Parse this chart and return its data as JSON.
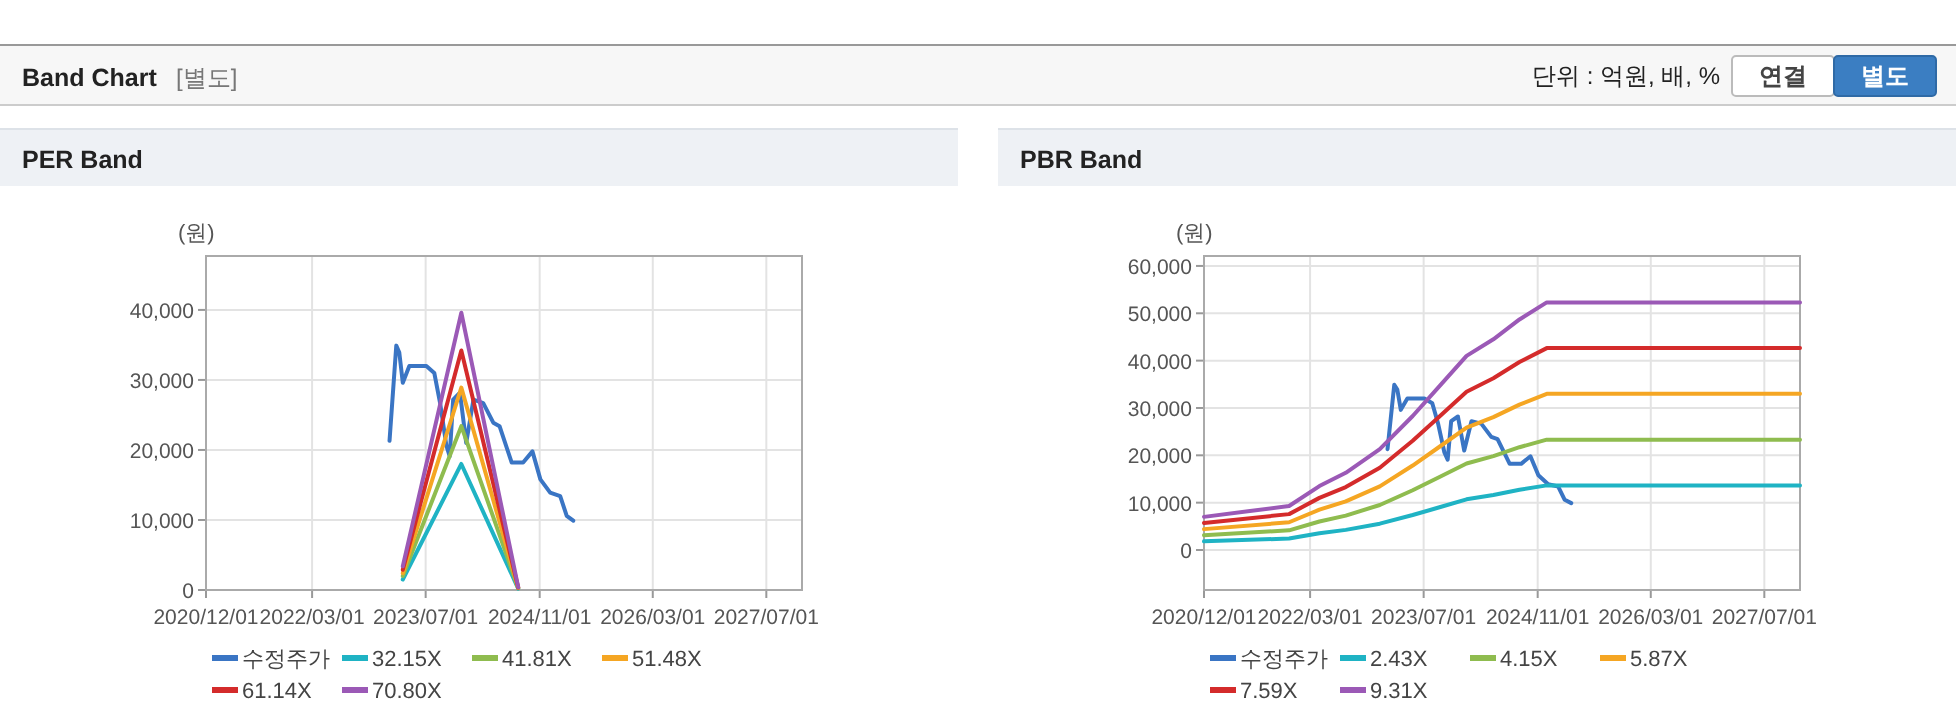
{
  "chart_data": [
    {
      "type": "other",
      "title": "Band Chart",
      "subtitle": "[별도]",
      "annotations": [
        "단위 : 억원, 배, %",
        "연결",
        "별도"
      ]
    },
    {
      "type": "line",
      "title": "PER Band",
      "ylabel": "(원)",
      "grid": true,
      "legend": "bottom",
      "xlim": [
        "2020-12-01",
        "2027-12-01"
      ],
      "xticks": [
        {
          "value": "2020-12-01",
          "label": "2020/12/01"
        },
        {
          "value": "2022-03-01",
          "label": "2022/03/01"
        },
        {
          "value": "2023-07-01",
          "label": "2023/07/01"
        },
        {
          "value": "2024-11-01",
          "label": "2024/11/01"
        },
        {
          "value": "2026-03-01",
          "label": "2026/03/01"
        },
        {
          "value": "2027-07-01",
          "label": "2027/07/01"
        }
      ],
      "ylim": [
        0,
        47700
      ],
      "yticks": [
        0,
        {
          "value": 10000,
          "label": "10,000"
        },
        {
          "value": 20000,
          "label": "20,000"
        },
        {
          "value": 30000,
          "label": "30,000"
        },
        {
          "value": 40000,
          "label": "40,000"
        }
      ],
      "series": [
        {
          "name": "수정주가",
          "color": "#3a75c4",
          "x": [
            "2023-01-27",
            "2023-02-25",
            "2023-03-10",
            "2023-03-25",
            "2023-04-22",
            "2023-07-04",
            "2023-08-07",
            "2023-09-01",
            "2023-09-28",
            "2023-10-12",
            "2023-10-27",
            "2023-11-25",
            "2023-12-22",
            "2024-01-22",
            "2024-03-04",
            "2024-04-16",
            "2024-05-13",
            "2024-07-04",
            "2024-08-22",
            "2024-10-01",
            "2024-11-04",
            "2024-12-16",
            "2025-01-28",
            "2025-02-25",
            "2025-03-25"
          ],
          "values": [
            21300,
            34900,
            33900,
            29600,
            32000,
            32000,
            31000,
            26700,
            20600,
            19100,
            27200,
            28200,
            21000,
            27200,
            26700,
            23900,
            23400,
            18200,
            18200,
            19800,
            15800,
            13900,
            13400,
            10600,
            9900
          ]
        },
        {
          "name": "32.15X",
          "color": "#1fb3c4",
          "x": [
            "2023-03-25",
            "2023-12-01",
            "2024-08-01"
          ],
          "values": [
            1500,
            18000,
            200
          ]
        },
        {
          "name": "41.81X",
          "color": "#8fbc4f",
          "x": [
            "2023-03-25",
            "2023-12-01",
            "2024-08-01"
          ],
          "values": [
            2000,
            23400,
            250
          ]
        },
        {
          "name": "51.48X",
          "color": "#f5a623",
          "x": [
            "2023-03-25",
            "2023-12-01",
            "2024-08-01"
          ],
          "values": [
            2400,
            28900,
            300
          ]
        },
        {
          "name": "61.14X",
          "color": "#d42b2b",
          "x": [
            "2023-03-25",
            "2023-12-01",
            "2024-08-01"
          ],
          "values": [
            2900,
            34200,
            350
          ]
        },
        {
          "name": "70.80X",
          "color": "#9b59b6",
          "x": [
            "2023-03-25",
            "2023-12-01",
            "2024-08-01"
          ],
          "values": [
            3400,
            39600,
            400
          ]
        }
      ]
    },
    {
      "type": "line",
      "title": "PBR Band",
      "ylabel": "(원)",
      "grid": true,
      "legend": "bottom",
      "xlim": [
        "2020-12-01",
        "2027-12-01"
      ],
      "xticks": [
        {
          "value": "2020-12-01",
          "label": "2020/12/01"
        },
        {
          "value": "2022-03-01",
          "label": "2022/03/01"
        },
        {
          "value": "2023-07-01",
          "label": "2023/07/01"
        },
        {
          "value": "2024-11-01",
          "label": "2024/11/01"
        },
        {
          "value": "2026-03-01",
          "label": "2026/03/01"
        },
        {
          "value": "2027-07-01",
          "label": "2027/07/01"
        }
      ],
      "ylim": [
        -8450,
        62100
      ],
      "yticks": [
        0,
        {
          "value": 10000,
          "label": "10,000"
        },
        {
          "value": 20000,
          "label": "20,000"
        },
        {
          "value": 30000,
          "label": "30,000"
        },
        {
          "value": 40000,
          "label": "40,000"
        },
        {
          "value": 50000,
          "label": "50,000"
        },
        {
          "value": 60000,
          "label": "60,000"
        }
      ],
      "series": [
        {
          "name": "수정주가",
          "color": "#3a75c4",
          "x": [
            "2023-01-27",
            "2023-02-25",
            "2023-03-10",
            "2023-03-25",
            "2023-04-22",
            "2023-07-04",
            "2023-08-07",
            "2023-09-01",
            "2023-09-28",
            "2023-10-12",
            "2023-10-27",
            "2023-11-25",
            "2023-12-22",
            "2024-01-22",
            "2024-03-04",
            "2024-04-16",
            "2024-05-13",
            "2024-07-04",
            "2024-08-22",
            "2024-10-01",
            "2024-11-04",
            "2024-12-16",
            "2025-01-28",
            "2025-02-25",
            "2025-03-25"
          ],
          "values": [
            21300,
            34900,
            33900,
            29600,
            32000,
            32000,
            31000,
            26700,
            20600,
            19100,
            27200,
            28200,
            21000,
            27200,
            26700,
            23900,
            23400,
            18200,
            18200,
            19800,
            15800,
            13900,
            13400,
            10600,
            9900
          ]
        },
        {
          "name": "2.43X",
          "color": "#1fb3c4",
          "x": [
            "2020-12-01",
            "2021-12-01",
            "2022-04-10",
            "2022-08-01",
            "2022-12-25",
            "2023-05-15",
            "2023-09-07",
            "2024-01-01",
            "2024-04-25",
            "2024-08-15",
            "2024-12-10",
            "2027-12-01"
          ],
          "values": [
            1830,
            2430,
            3520,
            4250,
            5560,
            7390,
            9030,
            10700,
            11620,
            12710,
            13650,
            13650
          ]
        },
        {
          "name": "4.15X",
          "color": "#8fbc4f",
          "x": [
            "2020-12-01",
            "2021-12-01",
            "2022-04-10",
            "2022-08-01",
            "2022-12-25",
            "2023-05-15",
            "2023-09-07",
            "2024-01-01",
            "2024-04-25",
            "2024-08-15",
            "2024-12-10",
            "2027-12-01"
          ],
          "values": [
            3120,
            4150,
            6020,
            7270,
            9500,
            12620,
            15420,
            18280,
            19840,
            21710,
            23310,
            23310
          ]
        },
        {
          "name": "5.87X",
          "color": "#f5a623",
          "x": [
            "2020-12-01",
            "2021-12-01",
            "2022-04-10",
            "2022-08-01",
            "2022-12-25",
            "2023-05-15",
            "2023-09-07",
            "2024-01-01",
            "2024-04-25",
            "2024-08-15",
            "2024-12-10",
            "2027-12-01"
          ],
          "values": [
            4410,
            5860,
            8510,
            10280,
            13430,
            17840,
            21810,
            25850,
            28060,
            30710,
            32980,
            32980
          ]
        },
        {
          "name": "7.59X",
          "color": "#d42b2b",
          "x": [
            "2020-12-01",
            "2021-12-01",
            "2022-04-10",
            "2022-08-01",
            "2022-12-25",
            "2023-05-15",
            "2023-09-07",
            "2024-01-01",
            "2024-04-25",
            "2024-08-15",
            "2024-12-10",
            "2027-12-01"
          ],
          "values": [
            5710,
            7580,
            11010,
            13290,
            17370,
            23070,
            28210,
            33430,
            36280,
            39700,
            42640,
            42640
          ]
        },
        {
          "name": "9.31X",
          "color": "#9b59b6",
          "x": [
            "2020-12-01",
            "2021-12-01",
            "2022-04-10",
            "2022-08-01",
            "2022-12-25",
            "2023-05-15",
            "2023-09-07",
            "2024-01-01",
            "2024-04-25",
            "2024-08-15",
            "2024-12-10",
            "2027-12-01"
          ],
          "values": [
            7000,
            9300,
            13500,
            16300,
            21300,
            28300,
            34600,
            41000,
            44500,
            48700,
            52300,
            52300
          ]
        }
      ]
    }
  ]
}
